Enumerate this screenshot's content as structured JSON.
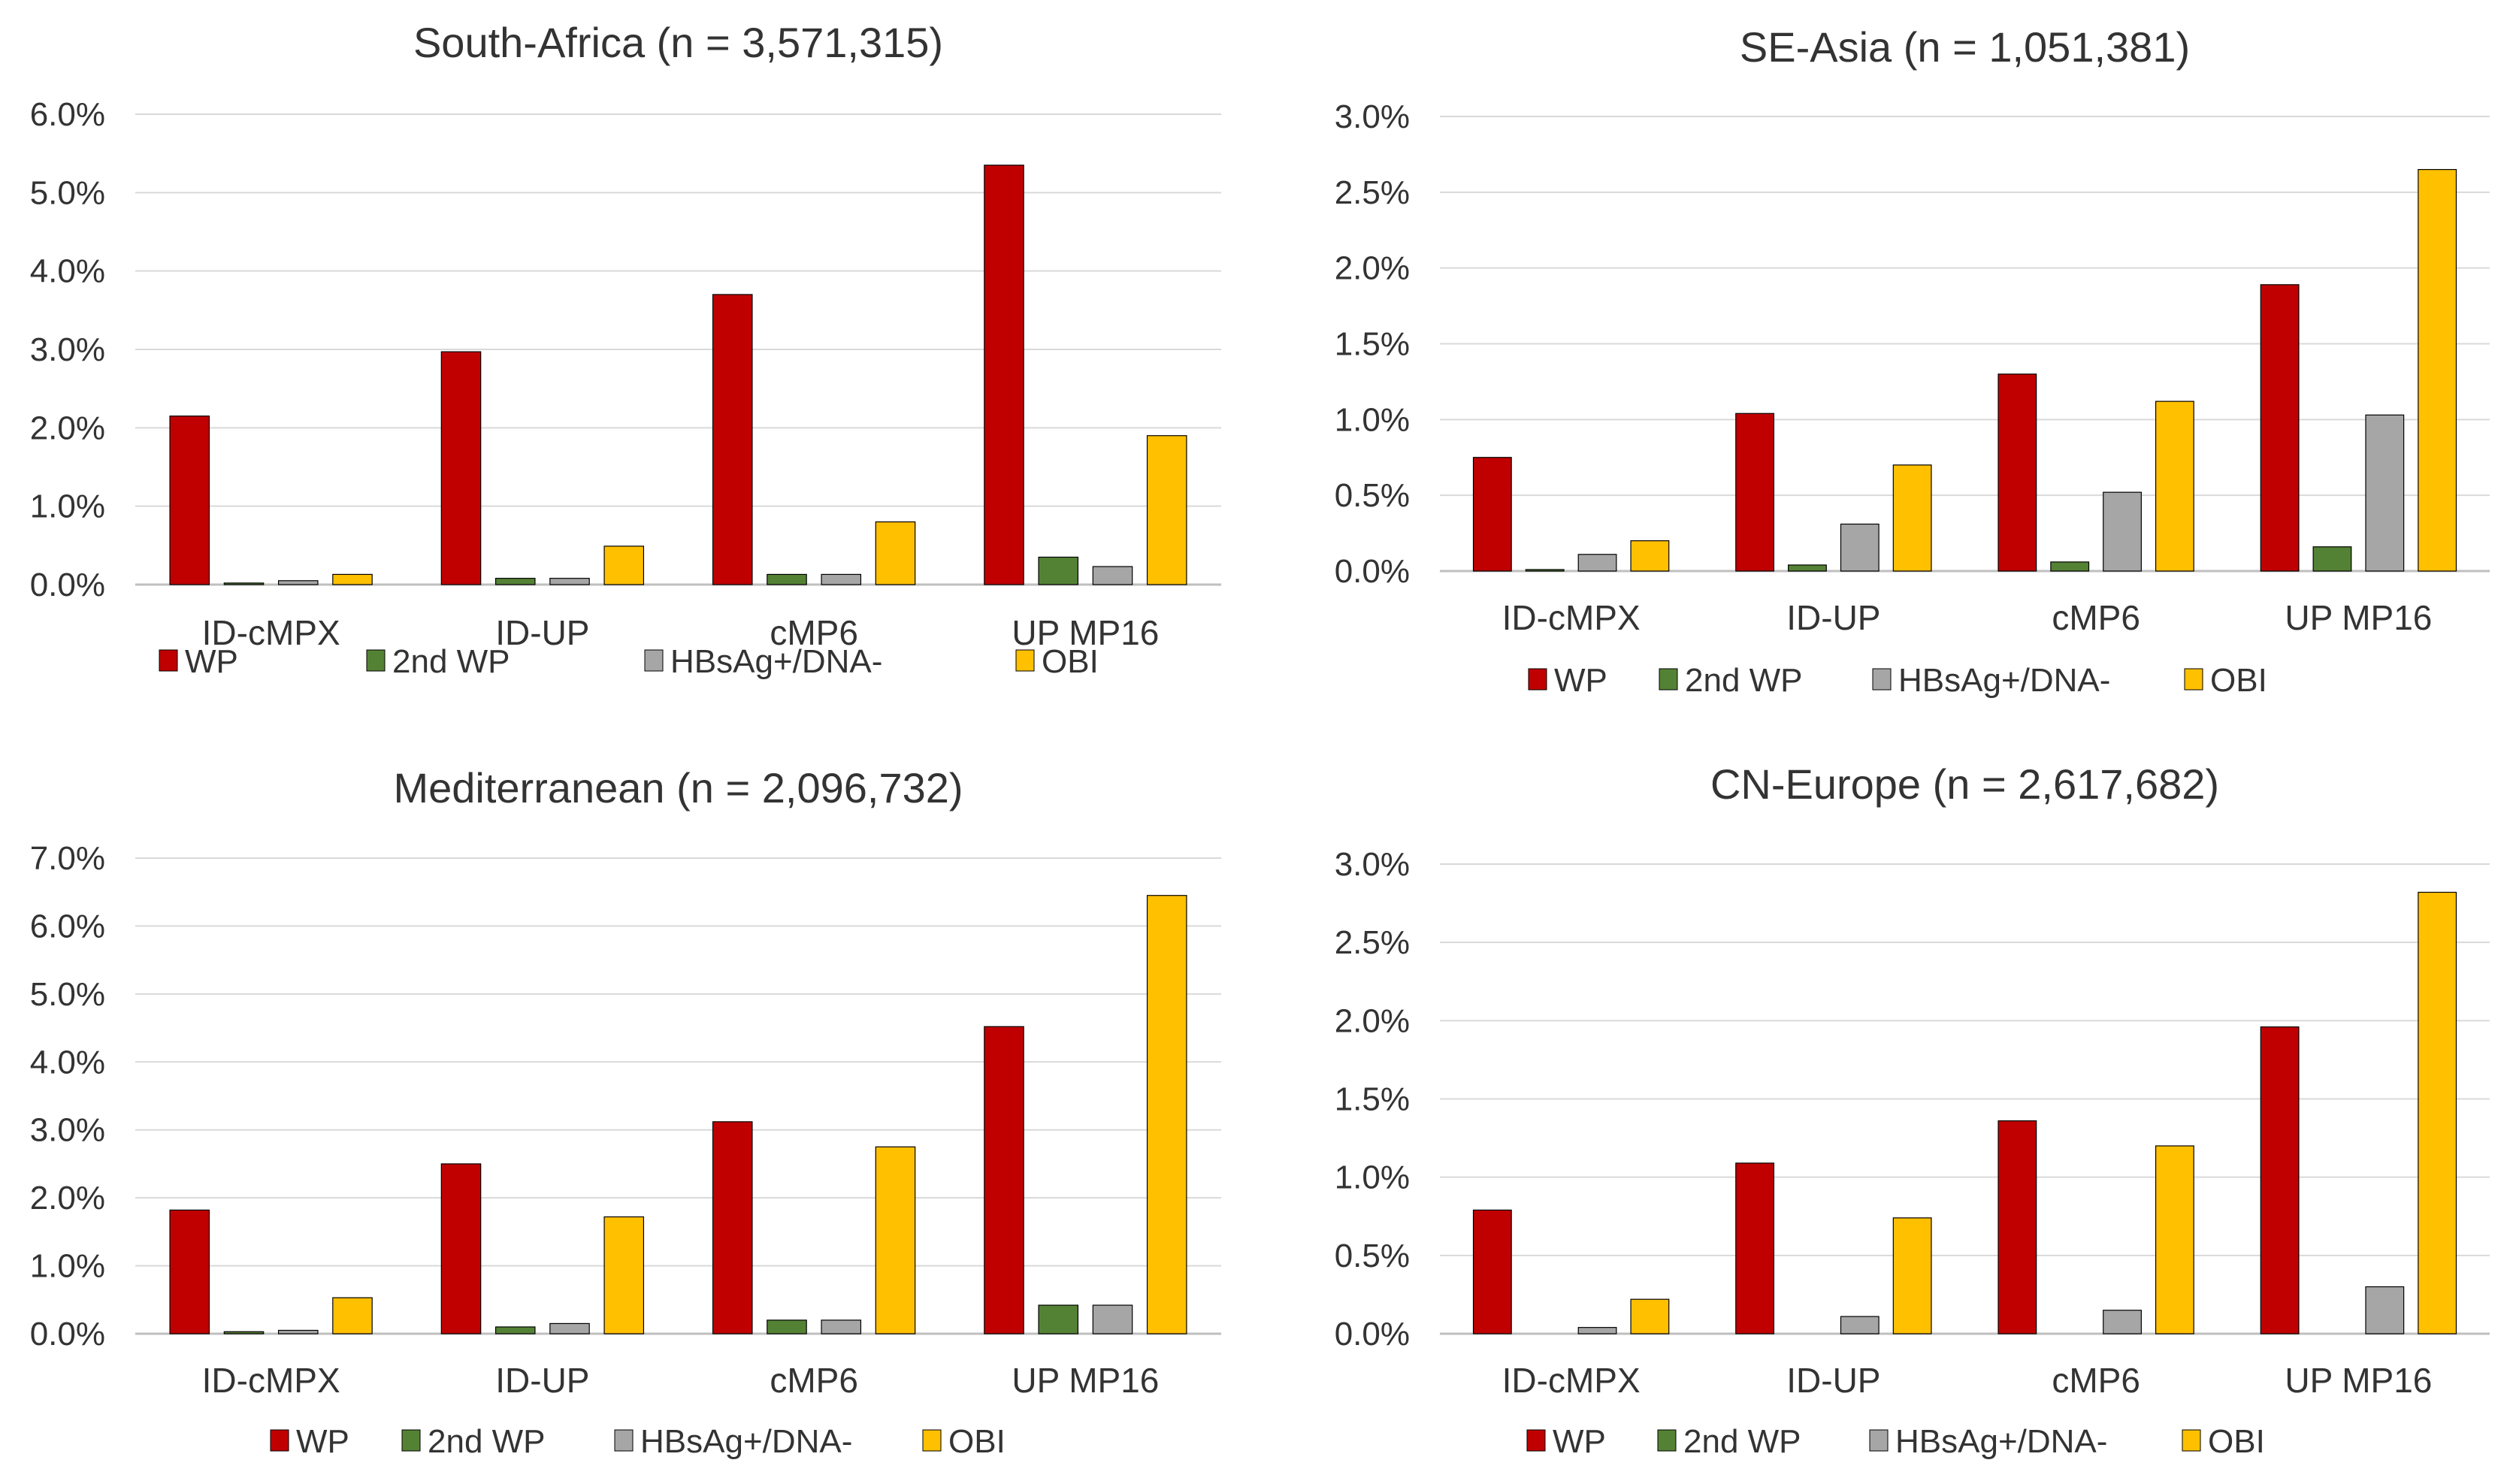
{
  "colors": {
    "WP": "#c00000",
    "2nd WP": "#548235",
    "HBsAg+/DNA-": "#a6a6a6",
    "OBI": "#ffc000",
    "grid": "#d9d9d9",
    "text": "#333333"
  },
  "chart_data": [
    {
      "type": "bar",
      "title": "South-Africa (n = 3,571,315)",
      "categories": [
        "ID-cMPX",
        "ID-UP",
        "cMP6",
        "UP MP16"
      ],
      "ylim": [
        0,
        6.0
      ],
      "yticks": [
        "0.0%",
        "1.0%",
        "2.0%",
        "3.0%",
        "4.0%",
        "5.0%",
        "6.0%"
      ],
      "grid": true,
      "legend": "bottom",
      "series": [
        {
          "name": "WP",
          "values": [
            2.15,
            2.97,
            3.7,
            5.35
          ]
        },
        {
          "name": "2nd WP",
          "values": [
            0.02,
            0.08,
            0.13,
            0.35
          ]
        },
        {
          "name": "HBsAg+/DNA-",
          "values": [
            0.05,
            0.08,
            0.13,
            0.23
          ]
        },
        {
          "name": "OBI",
          "values": [
            0.13,
            0.49,
            0.8,
            1.9
          ]
        }
      ]
    },
    {
      "type": "bar",
      "title": "SE-Asia (n = 1,051,381)",
      "categories": [
        "ID-cMPX",
        "ID-UP",
        "cMP6",
        "UP MP16"
      ],
      "ylim": [
        0,
        3.0
      ],
      "yticks": [
        "0.0%",
        "0.5%",
        "1.0%",
        "1.5%",
        "2.0%",
        "2.5%",
        "3.0%"
      ],
      "grid": true,
      "legend": "bottom",
      "series": [
        {
          "name": "WP",
          "values": [
            0.75,
            1.04,
            1.3,
            1.89
          ]
        },
        {
          "name": "2nd WP",
          "values": [
            0.01,
            0.04,
            0.06,
            0.16
          ]
        },
        {
          "name": "HBsAg+/DNA-",
          "values": [
            0.11,
            0.31,
            0.52,
            1.03
          ]
        },
        {
          "name": "OBI",
          "values": [
            0.2,
            0.7,
            1.12,
            2.65
          ]
        }
      ]
    },
    {
      "type": "bar",
      "title": "Mediterranean (n = 2,096,732)",
      "categories": [
        "ID-cMPX",
        "ID-UP",
        "cMP6",
        "UP MP16"
      ],
      "ylim": [
        0,
        7.0
      ],
      "yticks": [
        "0.0%",
        "1.0%",
        "2.0%",
        "3.0%",
        "4.0%",
        "5.0%",
        "6.0%",
        "7.0%"
      ],
      "grid": true,
      "legend": "bottom",
      "series": [
        {
          "name": "WP",
          "values": [
            1.82,
            2.5,
            3.12,
            4.52
          ]
        },
        {
          "name": "2nd WP",
          "values": [
            0.03,
            0.1,
            0.2,
            0.42
          ]
        },
        {
          "name": "HBsAg+/DNA-",
          "values": [
            0.05,
            0.15,
            0.2,
            0.42
          ]
        },
        {
          "name": "OBI",
          "values": [
            0.53,
            1.72,
            2.75,
            6.45
          ]
        }
      ]
    },
    {
      "type": "bar",
      "title": "CN-Europe (n = 2,617,682)",
      "categories": [
        "ID-cMPX",
        "ID-UP",
        "cMP6",
        "UP MP16"
      ],
      "ylim": [
        0,
        3.0
      ],
      "yticks": [
        "0.0%",
        "0.5%",
        "1.0%",
        "1.5%",
        "2.0%",
        "2.5%",
        "3.0%"
      ],
      "grid": true,
      "legend": "bottom",
      "series": [
        {
          "name": "WP",
          "values": [
            0.79,
            1.09,
            1.36,
            1.96
          ]
        },
        {
          "name": "2nd WP",
          "values": [
            0.0,
            0.0,
            0.0,
            0.0
          ]
        },
        {
          "name": "HBsAg+/DNA-",
          "values": [
            0.04,
            0.11,
            0.15,
            0.3
          ]
        },
        {
          "name": "OBI",
          "values": [
            0.22,
            0.74,
            1.2,
            2.82
          ]
        }
      ]
    }
  ]
}
